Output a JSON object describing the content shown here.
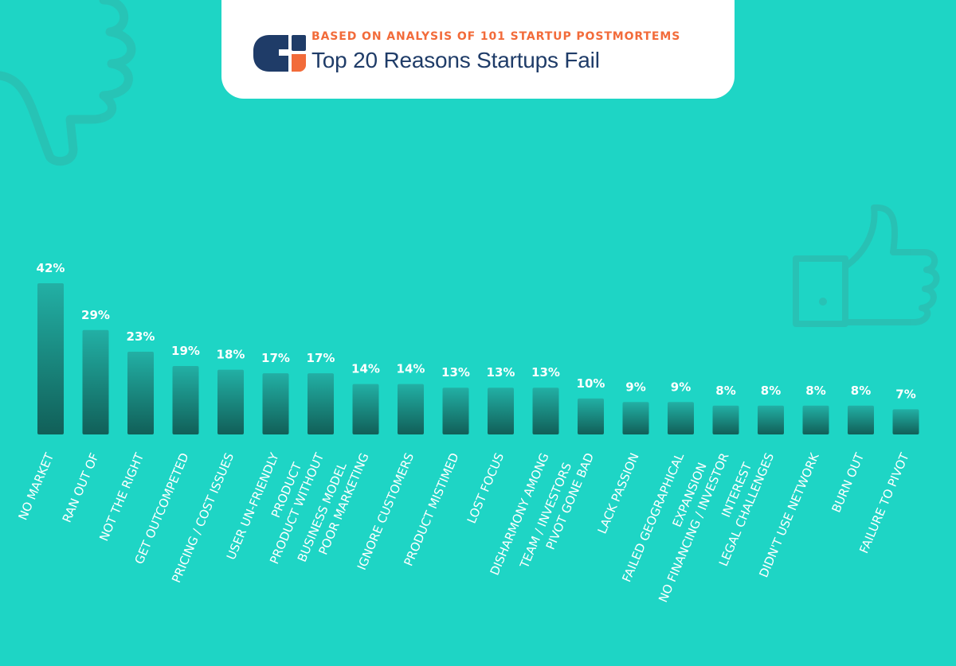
{
  "header": {
    "subtitle": "BASED ON ANALYSIS OF 101 STARTUP POSTMORTEMS",
    "title": "Top 20 Reasons Startups Fail"
  },
  "colors": {
    "background": "#1ed5c5",
    "bar_top": "#22b0a5",
    "bar_bottom": "#115f58",
    "logo_blue": "#1f3c68",
    "logo_orange": "#f26b3a",
    "subtitle": "#f26b3a",
    "title": "#1f3c68",
    "label": "#ffffff"
  },
  "icons": [
    "thumbs-down-icon",
    "thumbs-up-icon",
    "logo-icon"
  ],
  "chart_data": {
    "type": "bar",
    "title": "Top 20 Reasons Startups Fail",
    "subtitle": "BASED ON ANALYSIS OF 101 STARTUP POSTMORTEMS",
    "xlabel": "",
    "ylabel": "",
    "ylim": [
      0,
      42
    ],
    "grid": false,
    "value_suffix": "%",
    "categories": [
      [
        "NO MARKET"
      ],
      [
        "RAN OUT OF"
      ],
      [
        "NOT THE RIGHT"
      ],
      [
        "GET OUTCOMPETED"
      ],
      [
        "PRICING / COST ISSUES"
      ],
      [
        "USER UN-FRIENDLY",
        "PRODUCT"
      ],
      [
        "PRODUCT WITHOUT",
        "BUSINESS MODEL"
      ],
      [
        "POOR MARKETING"
      ],
      [
        "IGNORE CUSTOMERS"
      ],
      [
        "PRODUCT MISTIMED"
      ],
      [
        "LOST FOCUS"
      ],
      [
        "DISHARMONY AMONG",
        "TEAM / INVESTORS"
      ],
      [
        "PIVOT GONE BAD"
      ],
      [
        "LACK PASSION"
      ],
      [
        "FAILED GEOGRAPHICAL",
        "EXPANSION"
      ],
      [
        "NO FINANCING / INVESTOR",
        "INTEREST"
      ],
      [
        "LEGAL CHALLENGES"
      ],
      [
        "DIDN'T USE NETWORK"
      ],
      [
        "BURN OUT"
      ],
      [
        "FAILURE TO PIVOT"
      ]
    ],
    "values": [
      42,
      29,
      23,
      19,
      18,
      17,
      17,
      14,
      14,
      13,
      13,
      13,
      10,
      9,
      9,
      8,
      8,
      8,
      8,
      7
    ]
  }
}
